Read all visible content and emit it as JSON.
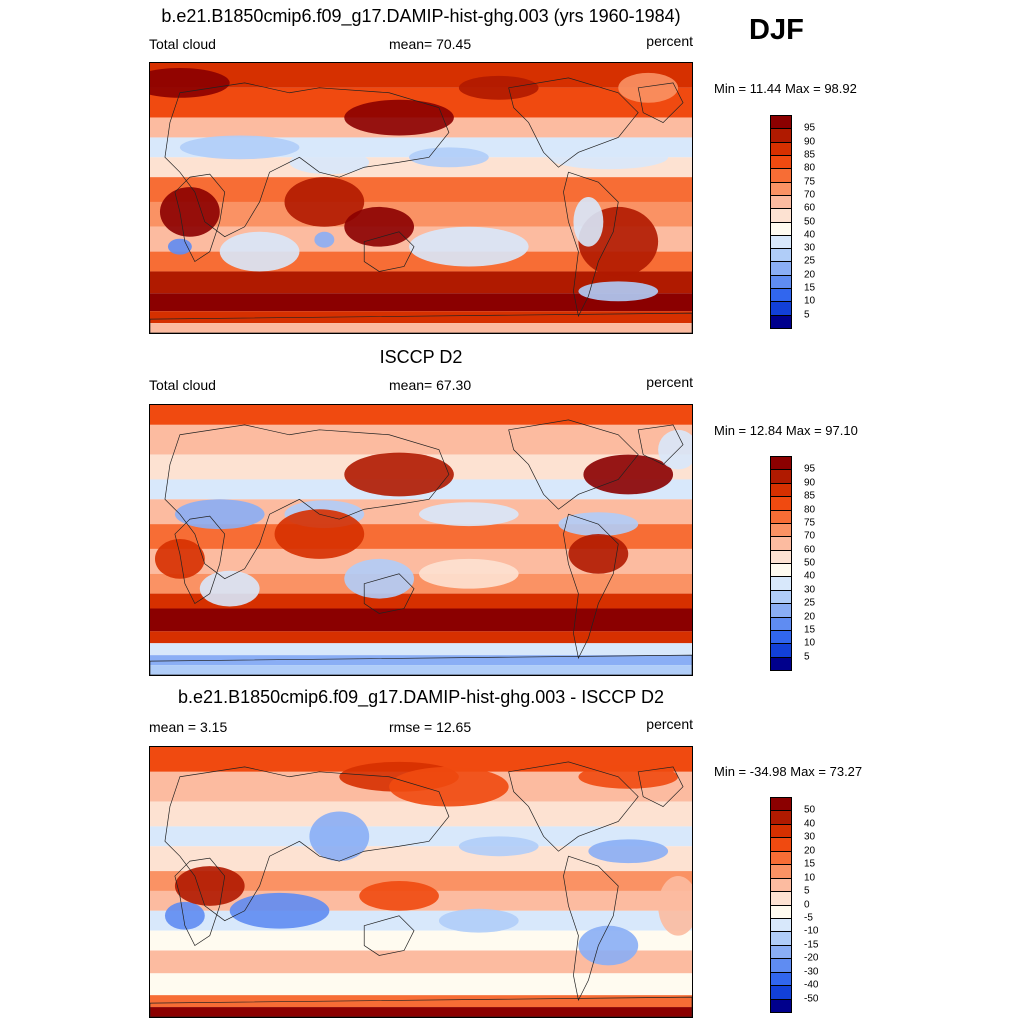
{
  "season": "DJF",
  "panels": [
    {
      "title": "b.e21.B1850cmip6.f09_g17.DAMIP-hist-ghg.003 (yrs 1960-1984)",
      "left_label": "Total cloud",
      "center_label": "mean=  70.45",
      "right_label": "percent",
      "minmax": "Min =  11.44 Max =  98.92",
      "kind": "model"
    },
    {
      "title": "ISCCP D2",
      "left_label": "Total cloud",
      "center_label": "mean=  67.30",
      "right_label": "percent",
      "minmax": "Min =  12.84 Max =  97.10",
      "kind": "obs"
    },
    {
      "title": "b.e21.B1850cmip6.f09_g17.DAMIP-hist-ghg.003 - ISCCP D2",
      "left_label": "mean =   3.15",
      "center_label": "rmse =   12.65",
      "right_label": "percent",
      "minmax": "Min = -34.98 Max =  73.27",
      "kind": "diff"
    }
  ],
  "colorbars": {
    "cloud": {
      "labels": [
        "95",
        "90",
        "85",
        "80",
        "75",
        "70",
        "60",
        "50",
        "40",
        "30",
        "25",
        "20",
        "15",
        "10",
        "5"
      ],
      "colors": [
        "#8b0000",
        "#b01a00",
        "#d63000",
        "#f04a10",
        "#f76d35",
        "#fa9264",
        "#fcbba0",
        "#fde2d2",
        "#fffbf0",
        "#d8e8fb",
        "#b0cdf8",
        "#8aaef5",
        "#5f8cf2",
        "#3166ee",
        "#1240d8",
        "#00008c"
      ]
    },
    "diff": {
      "labels": [
        "50",
        "40",
        "30",
        "20",
        "15",
        "10",
        "5",
        "0",
        "-5",
        "-10",
        "-15",
        "-20",
        "-30",
        "-40",
        "-50"
      ],
      "colors": [
        "#8b0000",
        "#b01a00",
        "#d63000",
        "#f04a10",
        "#f76d35",
        "#fa9264",
        "#fcbba0",
        "#fde2d2",
        "#fffbf0",
        "#d8e8fb",
        "#b0cdf8",
        "#8aaef5",
        "#5f8cf2",
        "#3166ee",
        "#1240d8",
        "#00008c"
      ]
    }
  }
}
